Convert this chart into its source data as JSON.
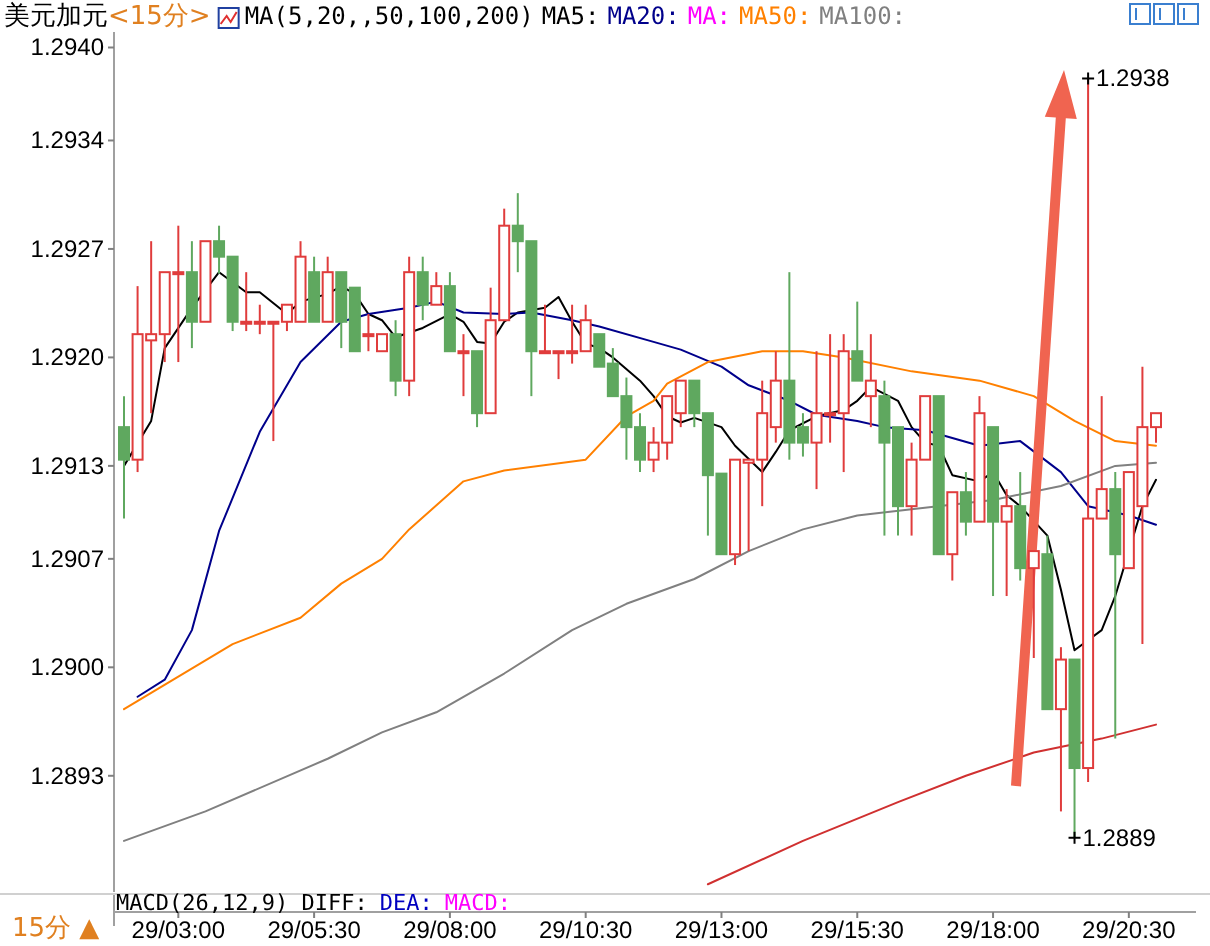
{
  "chart_data": {
    "type": "candlestick",
    "title": "美元加元",
    "subtitle": "<15分>",
    "categories": [
      null,
      null,
      null,
      null,
      "29/03:00",
      null,
      null,
      null,
      null,
      null,
      null,
      null,
      null,
      null,
      "29/05:30",
      null,
      null,
      null,
      null,
      null,
      null,
      null,
      null,
      null,
      "29/08:00",
      null,
      null,
      null,
      null,
      null,
      null,
      null,
      null,
      null,
      "29/10:30",
      null,
      null,
      null,
      null,
      null,
      null,
      null,
      null,
      null,
      "29/13:00",
      null,
      null,
      null,
      null,
      null,
      null,
      null,
      null,
      null,
      "29/15:30",
      null,
      null,
      null,
      null,
      null,
      null,
      null,
      null,
      null,
      "29/18:00",
      null,
      null,
      null,
      null,
      null,
      null,
      null,
      null,
      null,
      "29/20:30",
      null,
      null
    ],
    "ohlc": [
      [
        1.29155,
        1.29175,
        1.29096,
        1.29134
      ],
      [
        1.29134,
        1.29246,
        1.29126,
        1.29215
      ],
      [
        1.29211,
        1.29275,
        1.29164,
        1.29215
      ],
      [
        1.29215,
        1.29255,
        1.29197,
        1.29255
      ],
      [
        1.29254,
        1.29285,
        1.29197,
        1.29255
      ],
      [
        1.29255,
        1.29275,
        1.29206,
        1.29223
      ],
      [
        1.29223,
        1.29275,
        1.29223,
        1.29275
      ],
      [
        1.29275,
        1.29285,
        1.29254,
        1.29265
      ],
      [
        1.29265,
        1.29265,
        1.29217,
        1.29223
      ],
      [
        1.29222,
        1.29255,
        1.29217,
        1.29223
      ],
      [
        1.29222,
        1.29234,
        1.29215,
        1.29223
      ],
      [
        1.29222,
        1.29223,
        1.29146,
        1.29223
      ],
      [
        1.29223,
        1.29234,
        1.29217,
        1.29234
      ],
      [
        1.29223,
        1.29275,
        1.29223,
        1.29265
      ],
      [
        1.29255,
        1.29265,
        1.29223,
        1.29223
      ],
      [
        1.29223,
        1.29265,
        1.29223,
        1.29255
      ],
      [
        1.29255,
        1.29255,
        1.29206,
        1.29223
      ],
      [
        1.29245,
        1.29245,
        1.29204,
        1.29204
      ],
      [
        1.29214,
        1.29228,
        1.29204,
        1.29215
      ],
      [
        1.29204,
        1.29215,
        1.29204,
        1.29215
      ],
      [
        1.29215,
        1.29224,
        1.29175,
        1.29185
      ],
      [
        1.29185,
        1.29265,
        1.29175,
        1.29255
      ],
      [
        1.29255,
        1.29265,
        1.29224,
        1.29234
      ],
      [
        1.29234,
        1.29255,
        1.29234,
        1.29246
      ],
      [
        1.29246,
        1.29255,
        1.29204,
        1.29204
      ],
      [
        1.29203,
        1.29215,
        1.29175,
        1.29204
      ],
      [
        1.29204,
        1.29204,
        1.29155,
        1.29164
      ],
      [
        1.29164,
        1.29245,
        1.29164,
        1.29224
      ],
      [
        1.29224,
        1.29296,
        1.29224,
        1.29285
      ],
      [
        1.29285,
        1.29306,
        1.29255,
        1.29275
      ],
      [
        1.29275,
        1.29275,
        1.29175,
        1.29204
      ],
      [
        1.29203,
        1.29234,
        1.29203,
        1.29204
      ],
      [
        1.29203,
        1.29204,
        1.29186,
        1.29204
      ],
      [
        1.29203,
        1.29234,
        1.29196,
        1.29204
      ],
      [
        1.29204,
        1.29234,
        1.29204,
        1.29224
      ],
      [
        1.29215,
        1.29215,
        1.29194,
        1.29194
      ],
      [
        1.29196,
        1.29206,
        1.29175,
        1.29175
      ],
      [
        1.29175,
        1.29187,
        1.29134,
        1.29155
      ],
      [
        1.29155,
        1.29164,
        1.29126,
        1.29134
      ],
      [
        1.29134,
        1.29155,
        1.29126,
        1.29145
      ],
      [
        1.29145,
        1.29175,
        1.29134,
        1.29175
      ],
      [
        1.29164,
        1.29185,
        1.29155,
        1.29185
      ],
      [
        1.29185,
        1.29185,
        1.29155,
        1.29164
      ],
      [
        1.29164,
        1.29164,
        1.29085,
        1.29124
      ],
      [
        1.29125,
        1.29125,
        1.29073,
        1.29073
      ],
      [
        1.29073,
        1.29134,
        1.29066,
        1.29134
      ],
      [
        1.29132,
        1.29134,
        1.29075,
        1.29134
      ],
      [
        1.29134,
        1.29185,
        1.29104,
        1.29164
      ],
      [
        1.29155,
        1.29204,
        1.29145,
        1.29185
      ],
      [
        1.29185,
        1.29255,
        1.29134,
        1.29145
      ],
      [
        1.29155,
        1.29164,
        1.29136,
        1.29145
      ],
      [
        1.29145,
        1.29204,
        1.29115,
        1.29164
      ],
      [
        1.29163,
        1.29215,
        1.29145,
        1.29164
      ],
      [
        1.29164,
        1.29215,
        1.29126,
        1.29204
      ],
      [
        1.29204,
        1.29236,
        1.29185,
        1.29185
      ],
      [
        1.29175,
        1.29215,
        1.29155,
        1.29185
      ],
      [
        1.29175,
        1.29185,
        1.29085,
        1.29145
      ],
      [
        1.29155,
        1.29155,
        1.29085,
        1.29104
      ],
      [
        1.29104,
        1.29145,
        1.29085,
        1.29134
      ],
      [
        1.29134,
        1.29175,
        1.29134,
        1.29175
      ],
      [
        1.29175,
        1.29175,
        1.29073,
        1.29073
      ],
      [
        1.29073,
        1.29113,
        1.29056,
        1.29113
      ],
      [
        1.29113,
        1.29126,
        1.29085,
        1.29094
      ],
      [
        1.29094,
        1.29175,
        1.29094,
        1.29164
      ],
      [
        1.29155,
        1.29155,
        1.29046,
        1.29094
      ],
      [
        1.29094,
        1.29115,
        1.29046,
        1.29104
      ],
      [
        1.29104,
        1.29126,
        1.29056,
        1.29064
      ],
      [
        1.29064,
        1.29075,
        1.29006,
        1.29075
      ],
      [
        1.29073,
        1.29085,
        1.28973,
        1.28973
      ],
      [
        1.28973,
        1.29013,
        1.28907,
        1.29005
      ],
      [
        1.29005,
        1.29005,
        1.2889,
        1.28935
      ],
      [
        1.28935,
        1.2938,
        1.28926,
        1.29096
      ],
      [
        1.29096,
        1.29175,
        1.29096,
        1.29115
      ],
      [
        1.29115,
        1.29126,
        1.28954,
        1.29073
      ],
      [
        1.29064,
        1.29126,
        1.29064,
        1.29126
      ],
      [
        1.29104,
        1.29194,
        1.29015,
        1.29155
      ],
      [
        1.29155,
        1.29164,
        1.29145,
        1.29164
      ]
    ],
    "series": [
      {
        "name": "MA5:",
        "color": "#000000",
        "type": "line",
        "values": [
          1.2913,
          null,
          1.29159,
          1.29206,
          null,
          1.29232,
          null,
          1.29255,
          null,
          1.29242,
          1.29242,
          null,
          1.29228,
          1.29236,
          null,
          1.29241,
          1.29246,
          1.29241,
          1.29228,
          1.29224,
          1.29213,
          null,
          1.29219,
          null,
          1.29228,
          1.29223,
          1.2921,
          1.29209,
          1.29223,
          1.29229,
          null,
          1.29232,
          1.29239,
          1.29223,
          1.29209,
          1.29206,
          1.292,
          null,
          1.29185,
          1.29175,
          1.29162,
          1.29158,
          1.29161,
          null,
          1.29155,
          1.29143,
          null,
          1.29126,
          1.29139,
          1.29153,
          null,
          1.29162,
          null,
          1.29166,
          1.29172,
          1.29181,
          null,
          1.29172,
          1.29155,
          1.29145,
          1.29143,
          1.29124,
          null,
          1.2912,
          1.29126,
          1.29111,
          1.29104,
          null,
          1.29085,
          1.2905,
          1.29011,
          null,
          1.29024,
          1.29046,
          null,
          1.29104,
          1.29121
        ]
      },
      {
        "name": "MA20:",
        "color": "#00008b",
        "type": "line",
        "values": [
          null,
          1.28981,
          null,
          1.28992,
          null,
          1.29024,
          null,
          1.29088,
          null,
          null,
          1.29152,
          null,
          null,
          1.29197,
          null,
          null,
          1.29223,
          null,
          1.29228,
          null,
          null,
          1.29232,
          null,
          1.29236,
          null,
          1.29229,
          null,
          null,
          1.29228,
          null,
          1.29229,
          null,
          null,
          1.29224,
          null,
          1.2922,
          null,
          null,
          null,
          1.2921,
          null,
          1.29205,
          null,
          null,
          1.29194,
          null,
          1.29182,
          null,
          null,
          1.29172,
          null,
          1.29163,
          null,
          null,
          1.29159,
          null,
          1.29155,
          null,
          null,
          1.29153,
          null,
          null,
          null,
          1.29143,
          null,
          null,
          1.29146,
          null,
          null,
          1.29126,
          null,
          1.29104,
          null,
          null,
          1.29098,
          null,
          1.29092
        ]
      },
      {
        "name": "MA:",
        "color": "#ff00ff",
        "type": "line",
        "values": [
          null,
          null,
          null,
          null,
          null,
          null,
          null,
          null,
          null,
          null,
          null,
          null,
          null,
          null,
          null,
          null,
          null,
          null,
          null,
          null,
          null,
          null,
          null,
          null,
          null,
          null,
          null,
          null,
          null,
          null,
          null,
          null,
          null,
          null,
          null,
          null,
          null,
          null,
          null,
          null,
          null,
          null,
          null,
          null,
          null,
          null,
          null,
          null,
          null,
          null,
          null,
          null,
          null,
          null,
          null,
          null,
          null,
          null,
          null,
          null,
          null,
          null,
          null,
          null,
          null,
          null,
          null,
          null,
          null,
          null,
          null,
          null,
          null,
          null,
          null,
          null,
          null
        ]
      },
      {
        "name": "MA50:",
        "color": "#ff8000",
        "type": "line",
        "values": [
          1.28973,
          null,
          null,
          null,
          1.28994,
          null,
          null,
          null,
          1.29015,
          null,
          null,
          null,
          null,
          1.29032,
          null,
          null,
          1.29054,
          null,
          null,
          1.2907,
          null,
          1.29089,
          null,
          null,
          null,
          1.2912,
          null,
          null,
          1.29127,
          null,
          null,
          null,
          null,
          null,
          1.29134,
          null,
          null,
          1.29162,
          null,
          1.29172,
          1.29183,
          null,
          null,
          1.29197,
          null,
          null,
          null,
          1.29204,
          null,
          null,
          1.29204,
          null,
          null,
          1.292,
          null,
          null,
          null,
          null,
          1.29191,
          null,
          null,
          null,
          null,
          1.29185,
          null,
          null,
          null,
          1.29175,
          null,
          null,
          1.29159,
          null,
          null,
          1.29146,
          null,
          null,
          1.29143
        ]
      },
      {
        "name": "MA100:",
        "color": "#808080",
        "type": "line",
        "values": [
          1.28888,
          null,
          null,
          null,
          null,
          null,
          1.28907,
          null,
          null,
          null,
          null,
          null,
          null,
          null,
          null,
          1.28941,
          null,
          null,
          null,
          1.28958,
          null,
          null,
          null,
          1.28971,
          null,
          null,
          null,
          null,
          1.28996,
          null,
          null,
          null,
          null,
          1.29024,
          null,
          null,
          null,
          1.29041,
          null,
          null,
          null,
          null,
          1.29057,
          null,
          null,
          null,
          1.29075,
          null,
          null,
          null,
          1.29089,
          null,
          null,
          null,
          1.29098,
          null,
          null,
          null,
          1.29102,
          null,
          null,
          null,
          null,
          null,
          1.29108,
          null,
          null,
          null,
          null,
          1.29117,
          null,
          null,
          null,
          1.2913,
          null,
          null,
          1.29132
        ]
      },
      {
        "color": "#d03030",
        "type": "line",
        "values": [
          null,
          null,
          null,
          null,
          null,
          null,
          null,
          null,
          null,
          null,
          null,
          null,
          null,
          null,
          null,
          null,
          null,
          null,
          null,
          null,
          null,
          null,
          null,
          null,
          null,
          null,
          null,
          null,
          null,
          null,
          null,
          null,
          null,
          null,
          null,
          null,
          null,
          null,
          null,
          null,
          null,
          null,
          null,
          1.2886,
          null,
          null,
          null,
          null,
          null,
          null,
          1.28888,
          null,
          null,
          null,
          null,
          null,
          null,
          1.28913,
          null,
          null,
          null,
          null,
          1.2893,
          null,
          null,
          null,
          null,
          1.28945,
          null,
          null,
          null,
          null,
          1.28954,
          null,
          null,
          null,
          1.28963
        ]
      }
    ],
    "ylim": [
      1.28855,
      1.2941
    ],
    "yticks": [
      {
        "value": 1.294,
        "label": "1.2940"
      },
      {
        "value": 1.2934,
        "label": "1.2934"
      },
      {
        "value": 1.2927,
        "label": "1.2927"
      },
      {
        "value": 1.292,
        "label": "1.2920"
      },
      {
        "value": 1.2913,
        "label": "1.2913"
      },
      {
        "value": 1.2907,
        "label": "1.2907"
      },
      {
        "value": 1.29,
        "label": "1.2900"
      },
      {
        "value": 1.2893,
        "label": "1.2893"
      }
    ],
    "legend": "top",
    "annotations": [
      "MA(5,20,,50,100,200)",
      "MACD(26,12,9) DIFF:",
      "DEA:",
      "MACD:",
      "15分 ▲",
      "1.2938",
      "1.2889"
    ]
  }
}
